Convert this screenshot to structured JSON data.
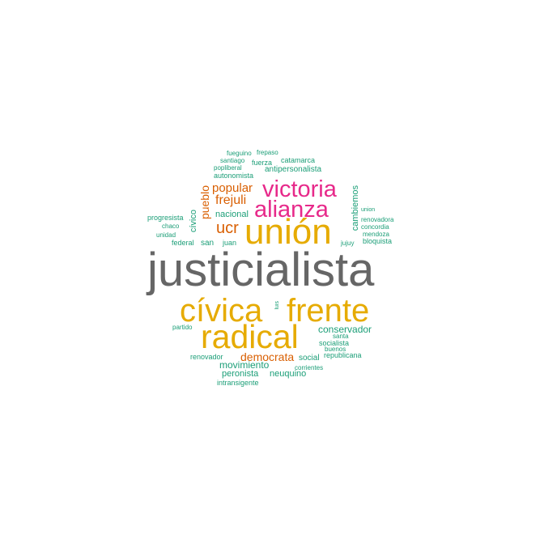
{
  "palette": [
    "#1b9e77",
    "#d95f02",
    "#e7298a",
    "#e6ab02",
    "#666666"
  ],
  "words": {
    "justicialista": "justicialista",
    "union_big": "unión",
    "civica": "cívica",
    "frente": "frente",
    "radical": "radical",
    "victoria": "victoria",
    "alianza": "alianza",
    "ucr": "ucr",
    "popular": "popular",
    "frejuli": "frejuli",
    "pueblo": "pueblo",
    "democrata": "democrata",
    "conservador": "conservador",
    "movimiento": "movimiento",
    "neuquino": "neuquino",
    "peronista": "peronista",
    "nacional": "nacional",
    "civico": "cívico",
    "cambiemos": "cambiemos",
    "antipersonalista": "antipersonalista",
    "autonomista": "autonomista",
    "catamarca": "catamarca",
    "fuerza": "fuerza",
    "popliberal": "popliberal",
    "santiago": "santiago",
    "fueguino": "fueguino",
    "frepaso": "frepaso",
    "progresista": "progresista",
    "chaco": "chaco",
    "unidad": "unidad",
    "federal": "federal",
    "san": "san",
    "juan": "juan",
    "union_small": "union",
    "renovadora": "renovadora",
    "concordia": "concordia",
    "mendoza": "mendoza",
    "jujuy": "jujuy",
    "bloquista": "bloquista",
    "luis": "luis",
    "partido": "partido",
    "renovador": "renovador",
    "santa": "santa",
    "socialista": "socialista",
    "buenos": "buenos",
    "social": "social",
    "republicana": "republicana",
    "corrientes": "corrientes",
    "intransigente": "intransigente"
  }
}
